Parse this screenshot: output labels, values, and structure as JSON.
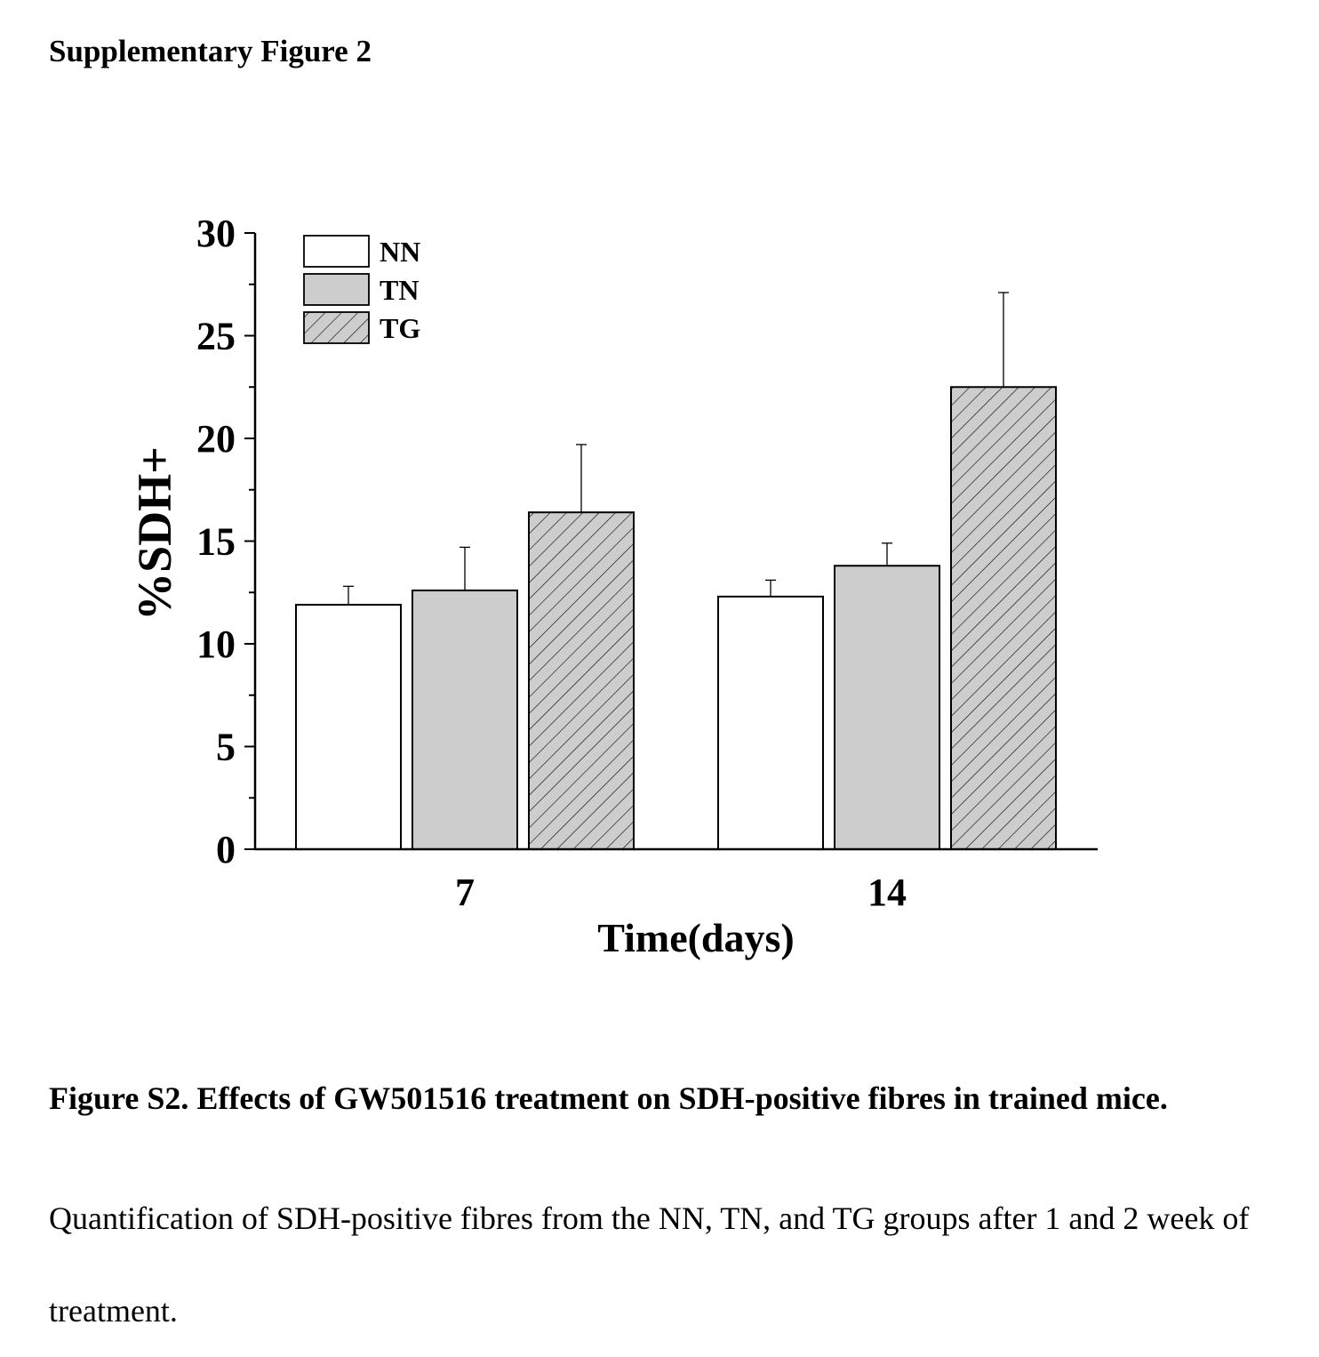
{
  "page": {
    "heading": "Supplementary Figure 2",
    "caption_title": "Figure S2. Effects of GW501516 treatment on SDH-positive fibres in trained mice.",
    "caption_body": "Quantification of SDH-positive fibres from the NN, TN, and TG groups after 1 and 2 week of treatment."
  },
  "chart_data": {
    "type": "bar",
    "title": "",
    "xlabel": "Time(days)",
    "ylabel": "%SDH+",
    "categories": [
      "7",
      "14"
    ],
    "ylim": [
      0,
      30
    ],
    "yticks": [
      "0",
      "5",
      "10",
      "15",
      "20",
      "25",
      "30"
    ],
    "legend_position": "top-left",
    "series": [
      {
        "name": "NN",
        "fill": "white",
        "pattern": "none",
        "values": [
          11.9,
          12.3
        ],
        "errors": [
          0.9,
          0.8
        ]
      },
      {
        "name": "TN",
        "fill": "light-gray",
        "pattern": "none",
        "values": [
          12.6,
          13.8
        ],
        "errors": [
          2.1,
          1.1
        ]
      },
      {
        "name": "TG",
        "fill": "light-gray",
        "pattern": "diagonal-hatch",
        "values": [
          16.4,
          22.5
        ],
        "errors": [
          3.3,
          4.6
        ]
      }
    ]
  }
}
